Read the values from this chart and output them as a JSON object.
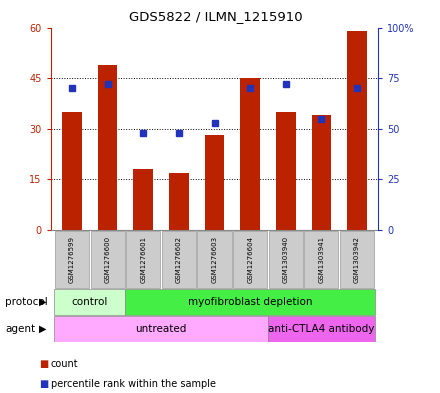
{
  "title": "GDS5822 / ILMN_1215910",
  "samples": [
    "GSM1276599",
    "GSM1276600",
    "GSM1276601",
    "GSM1276602",
    "GSM1276603",
    "GSM1276604",
    "GSM1303940",
    "GSM1303941",
    "GSM1303942"
  ],
  "counts": [
    35,
    49,
    18,
    17,
    28,
    45,
    35,
    34,
    59
  ],
  "percentile_ranks": [
    70,
    72,
    48,
    48,
    53,
    70,
    72,
    55,
    70
  ],
  "ylim_left": [
    0,
    60
  ],
  "ylim_right": [
    0,
    100
  ],
  "yticks_left": [
    0,
    15,
    30,
    45,
    60
  ],
  "yticks_right": [
    0,
    25,
    50,
    75,
    100
  ],
  "ytick_labels_left": [
    "0",
    "15",
    "30",
    "45",
    "60"
  ],
  "ytick_labels_right": [
    "0",
    "25",
    "50",
    "75",
    "100%"
  ],
  "bar_color": "#bb2200",
  "dot_color": "#2233bb",
  "protocol_groups": [
    {
      "label": "control",
      "start": 0,
      "end": 2,
      "color": "#ccffcc"
    },
    {
      "label": "myofibroblast depletion",
      "start": 2,
      "end": 9,
      "color": "#44ee44"
    }
  ],
  "agent_groups": [
    {
      "label": "untreated",
      "start": 0,
      "end": 6,
      "color": "#ffaaff"
    },
    {
      "label": "anti-CTLA4 antibody",
      "start": 6,
      "end": 9,
      "color": "#ee66ee"
    }
  ],
  "protocol_label": "protocol",
  "agent_label": "agent",
  "legend_count": "count",
  "legend_percentile": "percentile rank within the sample",
  "background_color": "#ffffff",
  "plot_bg_color": "#ffffff",
  "grid_color": "#000000",
  "sample_box_color": "#cccccc",
  "sample_box_edge": "#999999"
}
